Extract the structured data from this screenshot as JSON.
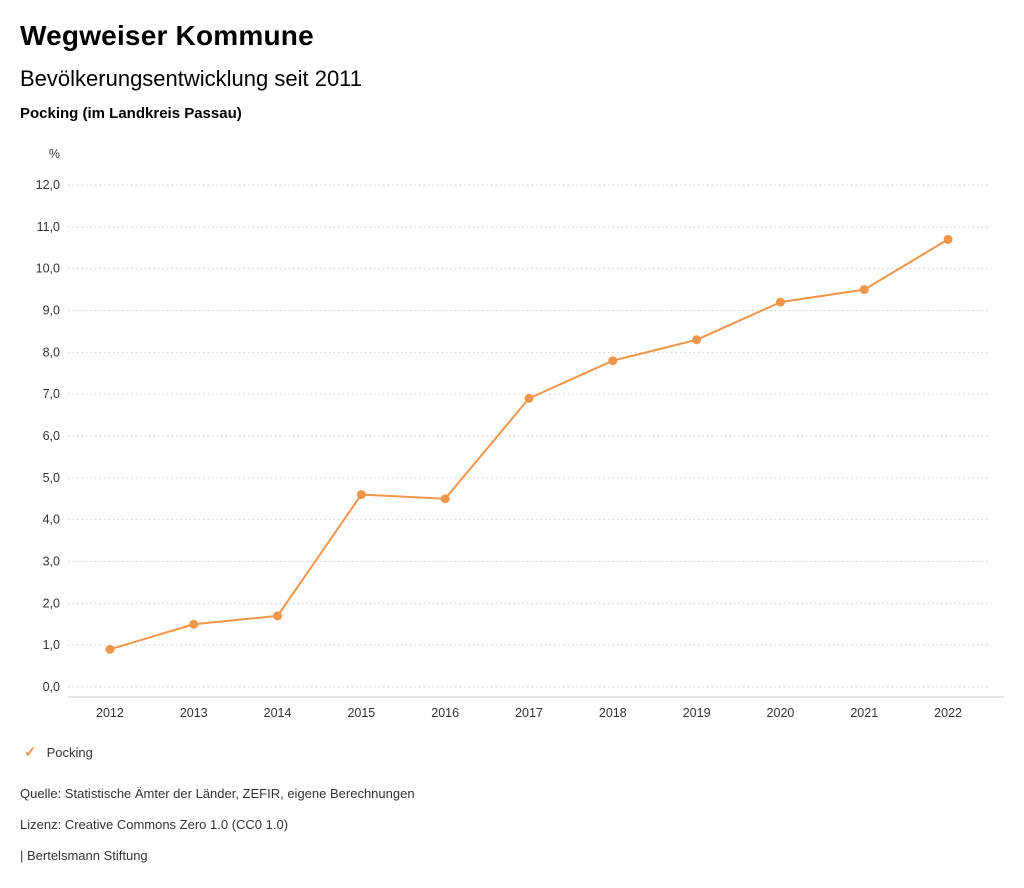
{
  "header": {
    "title": "Wegweiser Kommune",
    "subtitle": "Bevölkerungsentwicklung seit 2011",
    "region": "Pocking (im Landkreis Passau)"
  },
  "chart_data": {
    "type": "line",
    "title": "Bevölkerungsentwicklung seit 2011",
    "unit_label": "%",
    "categories": [
      "2012",
      "2013",
      "2014",
      "2015",
      "2016",
      "2017",
      "2018",
      "2019",
      "2020",
      "2021",
      "2022"
    ],
    "series": [
      {
        "name": "Pocking",
        "values": [
          0.9,
          1.5,
          1.7,
          4.6,
          4.5,
          6.9,
          7.8,
          8.3,
          9.2,
          9.5,
          10.7
        ]
      }
    ],
    "ylim": [
      0,
      12
    ],
    "ytick_step": 1,
    "ytick_labels": [
      "0,0",
      "1,0",
      "2,0",
      "3,0",
      "4,0",
      "5,0",
      "6,0",
      "7,0",
      "8,0",
      "9,0",
      "10,0",
      "11,0",
      "12,0"
    ],
    "grid": true,
    "legend_position": "bottom-left",
    "accent_color": "#f0964a"
  },
  "legend": {
    "items": [
      {
        "label": "Pocking",
        "marker": "check",
        "color": "#f0964a"
      }
    ]
  },
  "footer": {
    "source": "Quelle: Statistische Ämter der Länder, ZEFIR, eigene Berechnungen",
    "license": "Lizenz: Creative Commons Zero 1.0 (CC0 1.0)",
    "attribution": "| Bertelsmann Stiftung"
  }
}
